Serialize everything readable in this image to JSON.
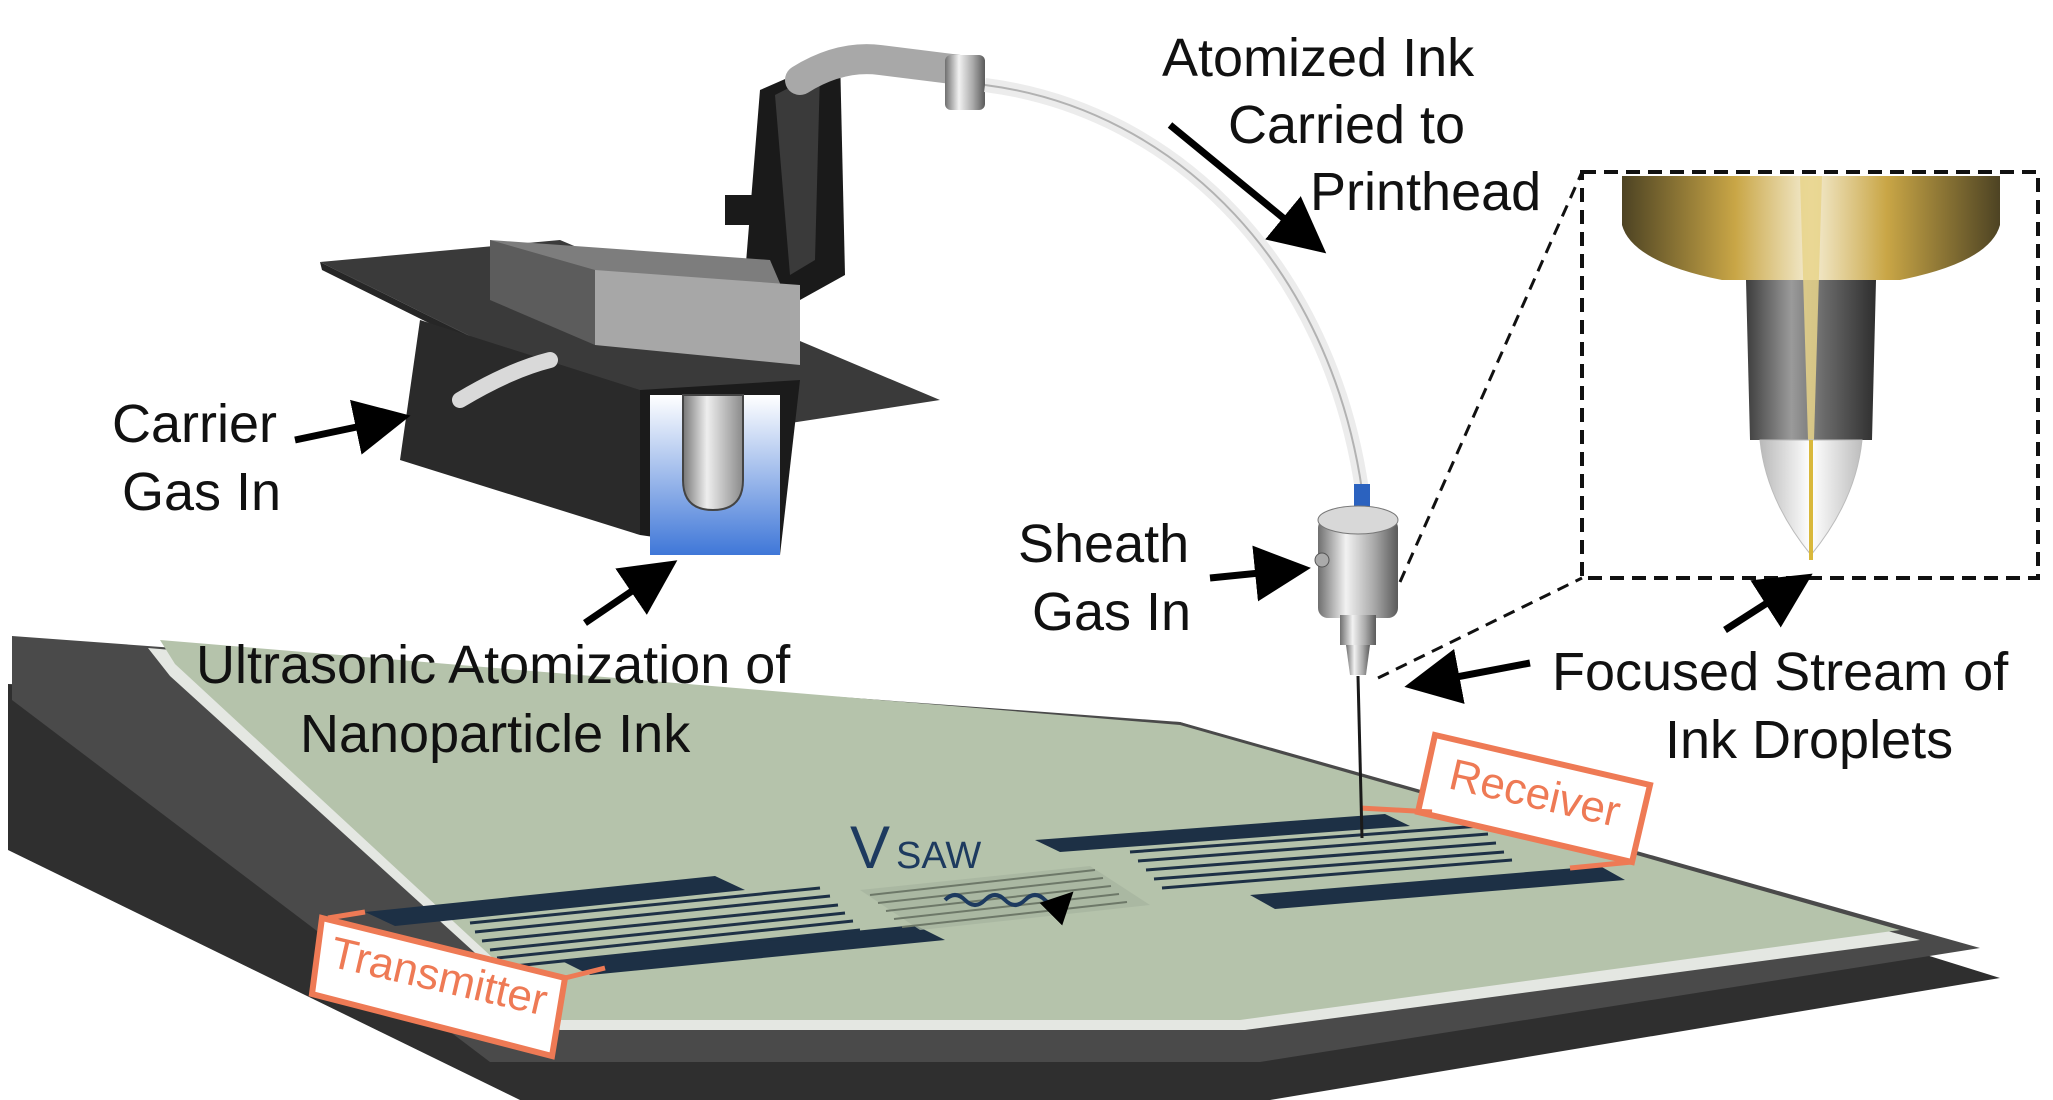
{
  "labels": {
    "atomized_1": "Atomized Ink",
    "atomized_2": "Carried to",
    "atomized_3": "Printhead",
    "carrier_1": "Carrier",
    "carrier_2": "Gas In",
    "sheath_1": "Sheath",
    "sheath_2": "Gas In",
    "ultrasonic_1": "Ultrasonic Atomization of",
    "ultrasonic_2": "Nanoparticle Ink",
    "focused_1": "Focused Stream of",
    "focused_2": "Ink Droplets",
    "receiver": "Receiver",
    "transmitter": "Transmitter",
    "vsaw_main": "V",
    "vsaw_sub": "SAW"
  },
  "colors": {
    "label_box": "#ee7a55",
    "electrode": "#1d3045",
    "substrate": "#b5c3ab",
    "base": "#3a3a3a",
    "ink": "#3f77d8",
    "nozzle_gold": "#c9a646"
  }
}
